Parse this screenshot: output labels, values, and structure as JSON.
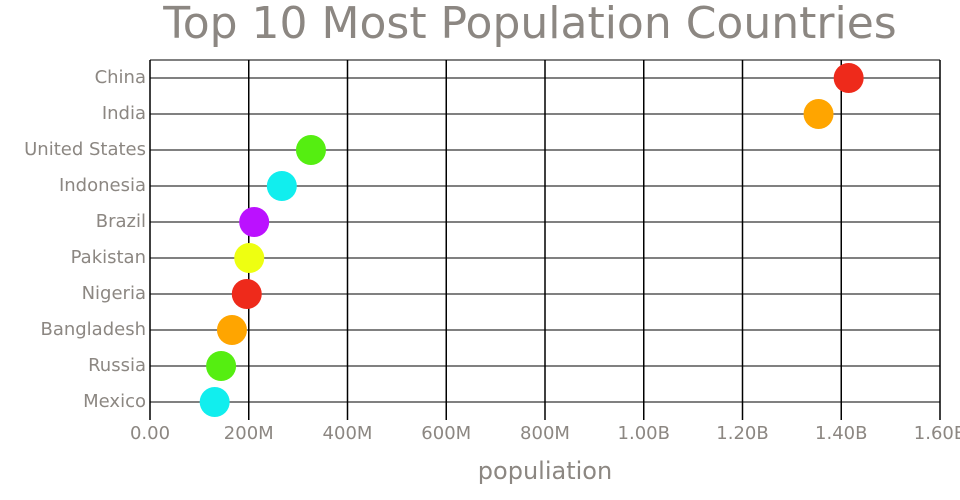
{
  "chart_data": {
    "type": "scatter",
    "title": "Top 10 Most Population Countries",
    "xlabel": "populiation",
    "ylabel": "",
    "xlim": [
      0,
      1600000000
    ],
    "x_ticks": [
      {
        "value": 0,
        "label": "0.00"
      },
      {
        "value": 200000000,
        "label": "200M"
      },
      {
        "value": 400000000,
        "label": "400M"
      },
      {
        "value": 600000000,
        "label": "600M"
      },
      {
        "value": 800000000,
        "label": "800M"
      },
      {
        "value": 1000000000,
        "label": "1.00B"
      },
      {
        "value": 1200000000,
        "label": "1.20B"
      },
      {
        "value": 1400000000,
        "label": "1.40B"
      },
      {
        "value": 1600000000,
        "label": "1.60B"
      }
    ],
    "categories": [
      "China",
      "India",
      "United States",
      "Indonesia",
      "Brazil",
      "Pakistan",
      "Nigeria",
      "Bangladesh",
      "Russia",
      "Mexico"
    ],
    "values": [
      1415000000,
      1354000000,
      326000000,
      267000000,
      211000000,
      201000000,
      196000000,
      166000000,
      144000000,
      131000000
    ],
    "point_colors": [
      "#ee2a1b",
      "#ffa500",
      "#55ee11",
      "#11eeee",
      "#bb11ff",
      "#eeff11",
      "#ee2a1b",
      "#ffa500",
      "#55ee11",
      "#11eeee"
    ],
    "grid": true,
    "legend": "none",
    "colors": {
      "title": "#8c8782",
      "tick_labels": "#8c8782",
      "axis_label": "#8c8782",
      "grid": "#000000"
    }
  }
}
